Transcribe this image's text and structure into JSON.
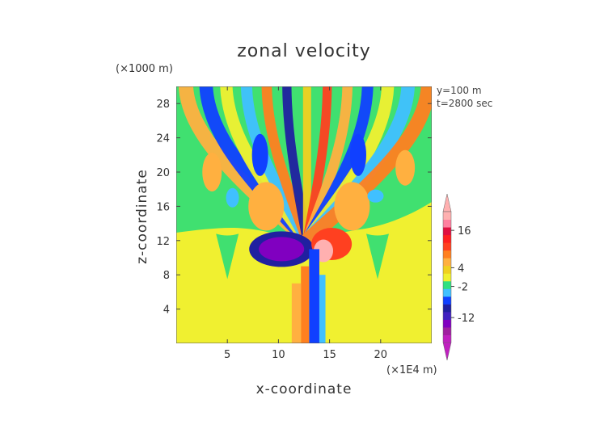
{
  "chart_data": {
    "type": "heatmap",
    "title": "zonal velocity",
    "xlabel": "x-coordinate",
    "ylabel": "z-coordinate",
    "x_unit_label": "(×1E4 m)",
    "y_unit_label": "(×1000 m)",
    "annotations": [
      "y=100 m",
      "t=2800 sec"
    ],
    "xlim": [
      0,
      25
    ],
    "ylim": [
      0,
      30
    ],
    "x_ticks": [
      5,
      10,
      15,
      20
    ],
    "y_ticks": [
      4,
      8,
      12,
      16,
      20,
      24,
      28
    ],
    "colorbar": {
      "tick_labels": [
        "16",
        "4",
        "-2",
        "-12"
      ],
      "tick_values": [
        16,
        4,
        -2,
        -12
      ],
      "range": [
        -20,
        22
      ],
      "colors": [
        "#c020c0",
        "#a020a0",
        "#8000c0",
        "#4020c0",
        "#2020a0",
        "#1040ff",
        "#40c0ff",
        "#30e080",
        "#f0f030",
        "#f0d020",
        "#ffb040",
        "#ff8020",
        "#ff4020",
        "#ff2020",
        "#e01040",
        "#ff80a0",
        "#ffb0b0"
      ]
    },
    "background_color": "#f0f030",
    "jet_center_x": 12.8
  }
}
